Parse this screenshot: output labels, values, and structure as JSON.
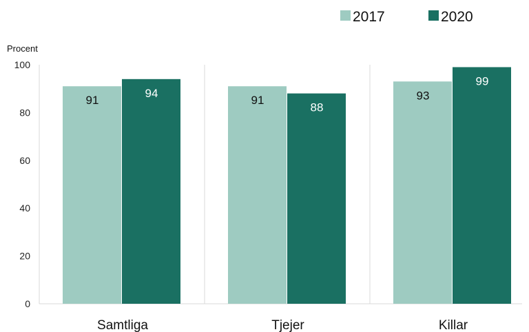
{
  "chart_data": {
    "type": "bar",
    "ylabel": "Procent",
    "ylim": [
      0,
      100
    ],
    "yticks": [
      0,
      20,
      40,
      60,
      80,
      100
    ],
    "categories": [
      "Samtliga",
      "Tjejer",
      "Killar"
    ],
    "series": [
      {
        "name": "2017",
        "values": [
          91,
          91,
          93
        ],
        "color": "#9ecbc1",
        "label_color": "#111111"
      },
      {
        "name": "2020",
        "values": [
          94,
          88,
          99
        ],
        "color": "#1a7062",
        "label_color": "#ffffff"
      }
    ],
    "legend_position": "top-right",
    "grid": false
  }
}
